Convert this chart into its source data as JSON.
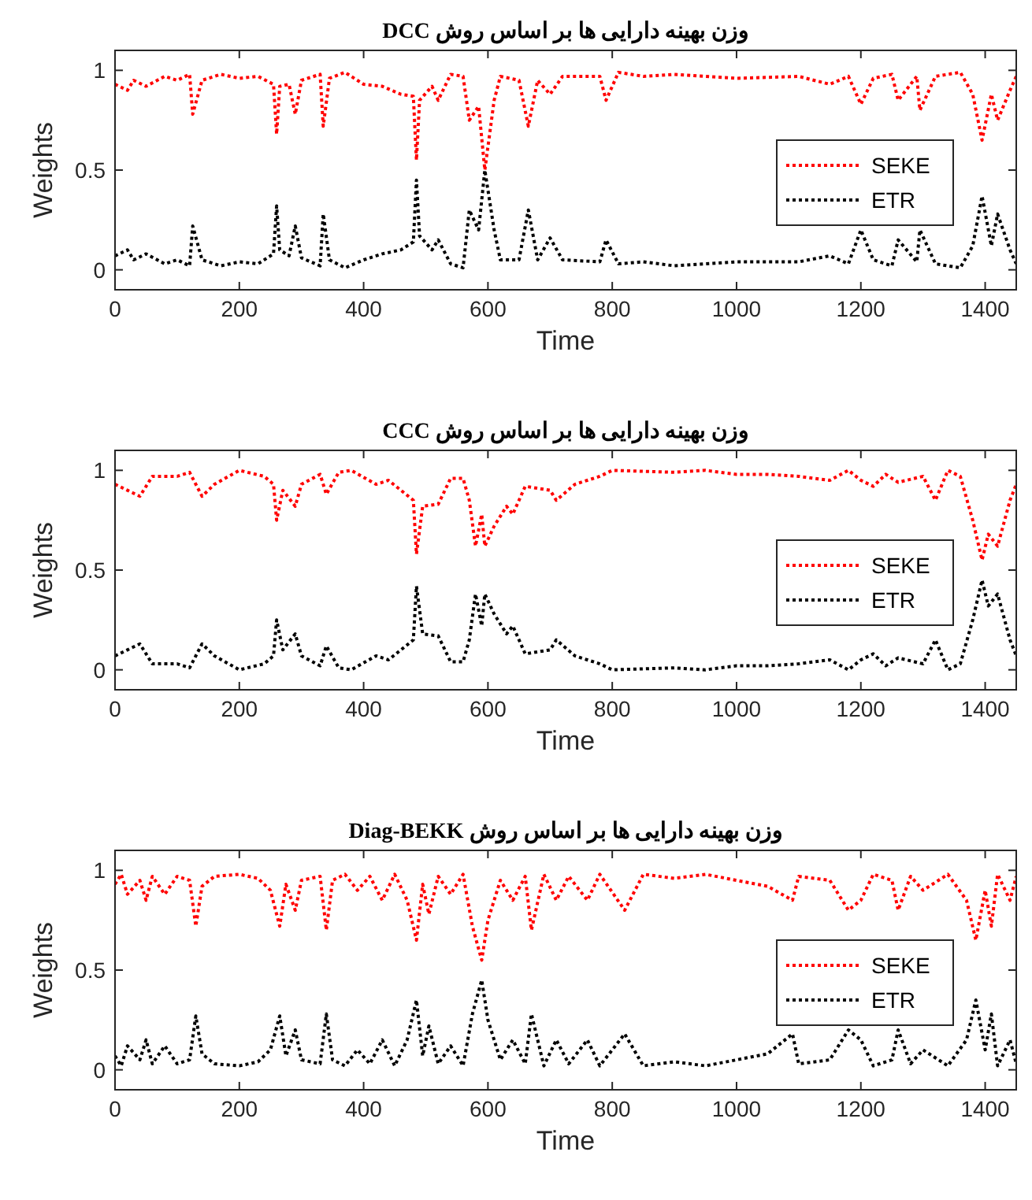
{
  "chart_data": [
    {
      "type": "line",
      "title": "وزن بهینه دارایی ها بر اساس روش DCC",
      "xlabel": "Time",
      "ylabel": "Weights",
      "xlim": [
        0,
        1450
      ],
      "ylim": [
        -0.1,
        1.1
      ],
      "xticks": [
        0,
        200,
        400,
        600,
        800,
        1000,
        1200,
        1400
      ],
      "yticks": [
        0,
        0.5,
        1
      ],
      "legend": "right",
      "line_style": "dotted",
      "x": [
        0,
        20,
        30,
        50,
        80,
        100,
        120,
        125,
        140,
        170,
        200,
        230,
        255,
        260,
        265,
        280,
        290,
        300,
        330,
        335,
        345,
        370,
        400,
        430,
        460,
        480,
        485,
        490,
        510,
        520,
        540,
        560,
        570,
        585,
        595,
        610,
        620,
        650,
        665,
        680,
        700,
        720,
        780,
        790,
        810,
        850,
        900,
        1000,
        1100,
        1150,
        1180,
        1200,
        1220,
        1250,
        1260,
        1290,
        1295,
        1320,
        1360,
        1380,
        1395,
        1410,
        1420,
        1440,
        1450
      ],
      "series": [
        {
          "name": "SEKE",
          "color": "#ff0000",
          "values": [
            0.93,
            0.9,
            0.95,
            0.92,
            0.97,
            0.95,
            0.98,
            0.78,
            0.95,
            0.98,
            0.96,
            0.97,
            0.93,
            0.68,
            0.92,
            0.93,
            0.78,
            0.95,
            0.98,
            0.72,
            0.96,
            0.99,
            0.93,
            0.92,
            0.88,
            0.87,
            0.55,
            0.85,
            0.92,
            0.85,
            0.98,
            0.97,
            0.75,
            0.82,
            0.5,
            0.85,
            0.97,
            0.95,
            0.72,
            0.95,
            0.88,
            0.97,
            0.97,
            0.85,
            0.99,
            0.97,
            0.98,
            0.96,
            0.97,
            0.93,
            0.97,
            0.83,
            0.96,
            0.98,
            0.85,
            0.97,
            0.8,
            0.97,
            0.99,
            0.88,
            0.65,
            0.88,
            0.75,
            0.9,
            0.97
          ]
        },
        {
          "name": "ETR",
          "color": "#000000",
          "values": [
            0.07,
            0.1,
            0.05,
            0.08,
            0.03,
            0.05,
            0.02,
            0.22,
            0.05,
            0.02,
            0.04,
            0.03,
            0.08,
            0.32,
            0.1,
            0.07,
            0.22,
            0.06,
            0.02,
            0.28,
            0.05,
            0.01,
            0.05,
            0.08,
            0.1,
            0.14,
            0.45,
            0.17,
            0.1,
            0.15,
            0.03,
            0.01,
            0.3,
            0.2,
            0.5,
            0.2,
            0.05,
            0.05,
            0.3,
            0.05,
            0.16,
            0.05,
            0.04,
            0.15,
            0.03,
            0.04,
            0.02,
            0.04,
            0.04,
            0.07,
            0.03,
            0.2,
            0.05,
            0.02,
            0.15,
            0.04,
            0.2,
            0.03,
            0.01,
            0.12,
            0.37,
            0.12,
            0.28,
            0.1,
            0.03
          ]
        }
      ]
    },
    {
      "type": "line",
      "title": "وزن بهینه دارایی ها بر اساس روش CCC",
      "xlabel": "Time",
      "ylabel": "Weights",
      "xlim": [
        0,
        1450
      ],
      "ylim": [
        -0.1,
        1.1
      ],
      "xticks": [
        0,
        200,
        400,
        600,
        800,
        1000,
        1200,
        1400
      ],
      "yticks": [
        0,
        0.5,
        1
      ],
      "legend": "right",
      "line_style": "dotted",
      "x": [
        0,
        20,
        40,
        60,
        100,
        120,
        140,
        160,
        200,
        240,
        255,
        260,
        270,
        290,
        300,
        330,
        340,
        360,
        380,
        420,
        440,
        460,
        480,
        485,
        495,
        520,
        540,
        560,
        570,
        580,
        590,
        595,
        610,
        630,
        640,
        660,
        700,
        710,
        740,
        780,
        800,
        900,
        950,
        1000,
        1050,
        1100,
        1150,
        1180,
        1200,
        1220,
        1240,
        1260,
        1300,
        1320,
        1340,
        1360,
        1380,
        1395,
        1405,
        1420,
        1440,
        1450
      ],
      "series": [
        {
          "name": "SEKE",
          "color": "#ff0000",
          "values": [
            0.93,
            0.9,
            0.87,
            0.97,
            0.97,
            0.99,
            0.87,
            0.93,
            1.0,
            0.97,
            0.93,
            0.75,
            0.9,
            0.82,
            0.93,
            0.98,
            0.88,
            0.99,
            1.0,
            0.93,
            0.95,
            0.9,
            0.85,
            0.58,
            0.82,
            0.83,
            0.96,
            0.96,
            0.85,
            0.62,
            0.78,
            0.62,
            0.72,
            0.82,
            0.78,
            0.92,
            0.9,
            0.85,
            0.93,
            0.97,
            1.0,
            0.99,
            1.0,
            0.98,
            0.98,
            0.97,
            0.95,
            1.0,
            0.95,
            0.92,
            0.98,
            0.94,
            0.97,
            0.85,
            1.0,
            0.97,
            0.75,
            0.55,
            0.68,
            0.62,
            0.85,
            0.93
          ]
        },
        {
          "name": "ETR",
          "color": "#000000",
          "values": [
            0.07,
            0.1,
            0.13,
            0.03,
            0.03,
            0.01,
            0.13,
            0.07,
            0.0,
            0.03,
            0.07,
            0.25,
            0.1,
            0.18,
            0.07,
            0.02,
            0.12,
            0.01,
            0.0,
            0.07,
            0.05,
            0.1,
            0.15,
            0.42,
            0.18,
            0.17,
            0.04,
            0.04,
            0.15,
            0.38,
            0.22,
            0.38,
            0.28,
            0.18,
            0.22,
            0.08,
            0.1,
            0.15,
            0.07,
            0.03,
            0.0,
            0.01,
            0.0,
            0.02,
            0.02,
            0.03,
            0.05,
            0.0,
            0.05,
            0.08,
            0.02,
            0.06,
            0.03,
            0.15,
            0.0,
            0.03,
            0.25,
            0.45,
            0.32,
            0.38,
            0.15,
            0.07
          ]
        }
      ]
    },
    {
      "type": "line",
      "title": "وزن بهینه دارایی ها بر اساس روش Diag-BEKK",
      "xlabel": "Time",
      "ylabel": "Weights",
      "xlim": [
        0,
        1450
      ],
      "ylim": [
        -0.1,
        1.1
      ],
      "xticks": [
        0,
        200,
        400,
        600,
        800,
        1000,
        1200,
        1400
      ],
      "yticks": [
        0,
        0.5,
        1
      ],
      "legend": "right",
      "line_style": "dotted",
      "x": [
        0,
        10,
        20,
        40,
        50,
        60,
        80,
        100,
        120,
        130,
        140,
        160,
        200,
        230,
        250,
        265,
        275,
        290,
        300,
        330,
        340,
        350,
        370,
        390,
        410,
        430,
        450,
        470,
        485,
        495,
        505,
        520,
        540,
        560,
        575,
        590,
        600,
        620,
        640,
        660,
        670,
        690,
        710,
        730,
        760,
        780,
        820,
        850,
        900,
        950,
        1000,
        1050,
        1090,
        1100,
        1150,
        1180,
        1200,
        1220,
        1250,
        1260,
        1280,
        1300,
        1340,
        1370,
        1385,
        1400,
        1410,
        1420,
        1440,
        1450
      ],
      "series": [
        {
          "name": "SEKE",
          "color": "#ff0000",
          "values": [
            0.93,
            0.98,
            0.88,
            0.95,
            0.85,
            0.97,
            0.88,
            0.97,
            0.95,
            0.72,
            0.92,
            0.97,
            0.98,
            0.96,
            0.9,
            0.72,
            0.93,
            0.8,
            0.95,
            0.97,
            0.7,
            0.95,
            0.98,
            0.9,
            0.97,
            0.85,
            0.98,
            0.85,
            0.65,
            0.93,
            0.78,
            0.97,
            0.88,
            0.98,
            0.72,
            0.55,
            0.75,
            0.95,
            0.85,
            0.97,
            0.7,
            0.98,
            0.85,
            0.97,
            0.85,
            0.98,
            0.8,
            0.98,
            0.96,
            0.98,
            0.95,
            0.92,
            0.85,
            0.97,
            0.95,
            0.8,
            0.85,
            0.98,
            0.95,
            0.8,
            0.97,
            0.9,
            0.98,
            0.85,
            0.65,
            0.9,
            0.72,
            0.98,
            0.85,
            0.97
          ]
        },
        {
          "name": "ETR",
          "color": "#000000",
          "values": [
            0.07,
            0.02,
            0.12,
            0.05,
            0.15,
            0.03,
            0.12,
            0.03,
            0.05,
            0.27,
            0.08,
            0.03,
            0.02,
            0.04,
            0.1,
            0.27,
            0.07,
            0.2,
            0.05,
            0.03,
            0.28,
            0.05,
            0.02,
            0.1,
            0.03,
            0.15,
            0.02,
            0.15,
            0.35,
            0.07,
            0.22,
            0.03,
            0.12,
            0.02,
            0.28,
            0.45,
            0.25,
            0.05,
            0.15,
            0.03,
            0.28,
            0.02,
            0.15,
            0.03,
            0.15,
            0.02,
            0.18,
            0.02,
            0.04,
            0.02,
            0.05,
            0.08,
            0.18,
            0.03,
            0.05,
            0.2,
            0.15,
            0.02,
            0.05,
            0.2,
            0.03,
            0.1,
            0.02,
            0.15,
            0.35,
            0.1,
            0.28,
            0.02,
            0.15,
            0.03
          ]
        }
      ]
    }
  ]
}
